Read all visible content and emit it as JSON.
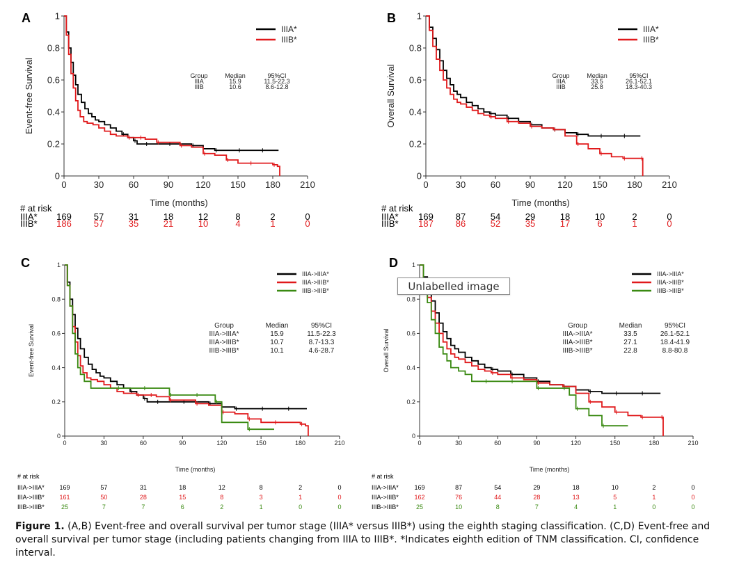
{
  "caption": {
    "label": "Figure 1.",
    "text": "(A,B) Event-free and overall survival per tumor stage (IIIA* versus IIIB*) using the eighth staging classification. (C,D) Event-free and overall survival per tumor stage (including patients changing from IIIA to IIIB*. *Indicates eighth edition of TNM classification. CI, confidence interval."
  },
  "tooltip": {
    "text": "Unlabelled image"
  },
  "colors": {
    "black": "#000000",
    "red": "#e0191b",
    "green": "#3a8a12"
  },
  "chart_data": [
    {
      "panel": "A",
      "type": "line",
      "ylabel": "Event-free Survival",
      "xlabel": "Time (months)",
      "xlim": [
        0,
        210
      ],
      "ylim": [
        0,
        1
      ],
      "xticks": [
        0,
        30,
        60,
        90,
        120,
        150,
        180,
        210
      ],
      "yticks": [
        "0",
        "0.2",
        "0.4",
        "0.6",
        "0.8",
        "1"
      ],
      "stats_header": [
        "Group",
        "Median",
        "95%CI"
      ],
      "stats": [
        [
          "IIIA",
          "15.9",
          "11.5-22.3"
        ],
        [
          "IIIB",
          "10.6",
          "8.6-12.8"
        ]
      ],
      "at_risk_label": "# at risk",
      "series": [
        {
          "name": "IIIA*",
          "color": "#000000",
          "at_risk": [
            "169",
            "57",
            "31",
            "18",
            "12",
            "8",
            "2",
            "0"
          ],
          "x": [
            0,
            2,
            4,
            6,
            8,
            10,
            12,
            15,
            18,
            21,
            24,
            27,
            30,
            35,
            40,
            45,
            50,
            55,
            60,
            63,
            70,
            80,
            90,
            100,
            110,
            120,
            130,
            140,
            150,
            160,
            170,
            185
          ],
          "y": [
            1,
            0.9,
            0.8,
            0.71,
            0.63,
            0.57,
            0.51,
            0.46,
            0.42,
            0.39,
            0.37,
            0.35,
            0.34,
            0.32,
            0.3,
            0.28,
            0.26,
            0.24,
            0.22,
            0.2,
            0.2,
            0.2,
            0.2,
            0.2,
            0.19,
            0.17,
            0.16,
            0.16,
            0.16,
            0.16,
            0.16,
            0.16
          ]
        },
        {
          "name": "IIIB*",
          "color": "#e0191b",
          "at_risk": [
            "186",
            "57",
            "35",
            "21",
            "10",
            "4",
            "1",
            "0"
          ],
          "x": [
            0,
            2,
            4,
            6,
            8,
            10,
            12,
            14,
            17,
            20,
            25,
            30,
            35,
            40,
            45,
            50,
            55,
            60,
            65,
            70,
            80,
            90,
            100,
            110,
            120,
            130,
            140,
            150,
            160,
            170,
            180,
            184,
            186
          ],
          "y": [
            1,
            0.88,
            0.76,
            0.64,
            0.55,
            0.47,
            0.41,
            0.37,
            0.34,
            0.33,
            0.32,
            0.3,
            0.28,
            0.26,
            0.25,
            0.25,
            0.24,
            0.24,
            0.24,
            0.23,
            0.21,
            0.21,
            0.19,
            0.18,
            0.14,
            0.13,
            0.1,
            0.08,
            0.08,
            0.08,
            0.07,
            0.06,
            0
          ]
        }
      ]
    },
    {
      "panel": "B",
      "type": "line",
      "ylabel": "Overall Survival",
      "xlabel": "Time (months)",
      "xlim": [
        0,
        210
      ],
      "ylim": [
        0,
        1
      ],
      "xticks": [
        0,
        30,
        60,
        90,
        120,
        150,
        180,
        210
      ],
      "yticks": [
        "0",
        "0.2",
        "0.4",
        "0.6",
        "0.8",
        "1"
      ],
      "stats_header": [
        "Group",
        "Median",
        "95%CI"
      ],
      "stats": [
        [
          "IIIA",
          "33.5",
          "26.1-52.1"
        ],
        [
          "IIIB",
          "25.8",
          "18.3-40.3"
        ]
      ],
      "at_risk_label": "# at risk",
      "series": [
        {
          "name": "IIIA*",
          "color": "#000000",
          "at_risk": [
            "169",
            "87",
            "54",
            "29",
            "18",
            "10",
            "2",
            "0"
          ],
          "x": [
            0,
            3,
            6,
            9,
            12,
            15,
            18,
            21,
            24,
            27,
            30,
            35,
            40,
            45,
            50,
            55,
            60,
            70,
            80,
            90,
            100,
            110,
            120,
            130,
            140,
            150,
            160,
            170,
            180,
            185
          ],
          "y": [
            1,
            0.93,
            0.86,
            0.79,
            0.72,
            0.66,
            0.61,
            0.57,
            0.53,
            0.51,
            0.49,
            0.46,
            0.44,
            0.42,
            0.4,
            0.39,
            0.38,
            0.36,
            0.34,
            0.32,
            0.3,
            0.29,
            0.27,
            0.26,
            0.25,
            0.25,
            0.25,
            0.25,
            0.25,
            0.25
          ]
        },
        {
          "name": "IIIB*",
          "color": "#e0191b",
          "at_risk": [
            "187",
            "86",
            "52",
            "35",
            "17",
            "6",
            "1",
            "0"
          ],
          "x": [
            0,
            3,
            6,
            9,
            12,
            15,
            18,
            21,
            24,
            27,
            30,
            35,
            40,
            45,
            50,
            55,
            60,
            70,
            80,
            90,
            100,
            110,
            120,
            130,
            140,
            150,
            160,
            170,
            180,
            185,
            187
          ],
          "y": [
            1,
            0.91,
            0.81,
            0.73,
            0.66,
            0.6,
            0.55,
            0.51,
            0.48,
            0.46,
            0.45,
            0.43,
            0.41,
            0.39,
            0.38,
            0.37,
            0.36,
            0.34,
            0.33,
            0.31,
            0.3,
            0.29,
            0.25,
            0.2,
            0.17,
            0.14,
            0.12,
            0.11,
            0.11,
            0.11,
            0
          ]
        }
      ]
    },
    {
      "panel": "C",
      "type": "line",
      "ylabel": "Event-free Survival",
      "xlabel": "Time (months)",
      "xlim": [
        0,
        210
      ],
      "ylim": [
        0,
        1
      ],
      "xticks": [
        0,
        30,
        60,
        90,
        120,
        150,
        180,
        210
      ],
      "yticks": [
        "0",
        "0.2",
        "0.4",
        "0.6",
        "0.8",
        "1"
      ],
      "stats_header": [
        "Group",
        "Median",
        "95%CI"
      ],
      "stats": [
        [
          "IIIA->IIIA*",
          "15.9",
          "11.5-22.3"
        ],
        [
          "IIIA->IIIB*",
          "10.7",
          "8.7-13.3"
        ],
        [
          "IIIB->IIIB*",
          "10.1",
          "4.6-28.7"
        ]
      ],
      "at_risk_label": "# at risk",
      "series": [
        {
          "name": "IIIA->IIIA*",
          "color": "#000000",
          "at_risk": [
            "169",
            "57",
            "31",
            "18",
            "12",
            "8",
            "2",
            "0"
          ],
          "x": [
            0,
            2,
            4,
            6,
            8,
            10,
            12,
            15,
            18,
            21,
            24,
            27,
            30,
            35,
            40,
            45,
            50,
            55,
            60,
            63,
            70,
            80,
            90,
            100,
            110,
            120,
            130,
            140,
            150,
            160,
            170,
            185
          ],
          "y": [
            1,
            0.9,
            0.8,
            0.71,
            0.63,
            0.57,
            0.51,
            0.46,
            0.42,
            0.39,
            0.37,
            0.35,
            0.34,
            0.32,
            0.3,
            0.28,
            0.26,
            0.24,
            0.22,
            0.2,
            0.2,
            0.2,
            0.2,
            0.2,
            0.19,
            0.17,
            0.16,
            0.16,
            0.16,
            0.16,
            0.16,
            0.16
          ]
        },
        {
          "name": "IIIA->IIIB*",
          "color": "#e0191b",
          "at_risk": [
            "161",
            "50",
            "28",
            "15",
            "8",
            "3",
            "1",
            "0"
          ],
          "x": [
            0,
            2,
            4,
            6,
            8,
            10,
            12,
            14,
            17,
            20,
            25,
            30,
            35,
            40,
            45,
            50,
            55,
            60,
            65,
            70,
            80,
            90,
            100,
            110,
            120,
            130,
            140,
            150,
            160,
            170,
            180,
            184,
            186
          ],
          "y": [
            1,
            0.88,
            0.76,
            0.64,
            0.55,
            0.47,
            0.41,
            0.37,
            0.34,
            0.33,
            0.32,
            0.3,
            0.28,
            0.26,
            0.25,
            0.25,
            0.24,
            0.24,
            0.24,
            0.23,
            0.21,
            0.21,
            0.19,
            0.18,
            0.14,
            0.13,
            0.1,
            0.08,
            0.08,
            0.08,
            0.07,
            0.06,
            0
          ]
        },
        {
          "name": "IIIB->IIIB*",
          "color": "#3a8a12",
          "at_risk": [
            "25",
            "7",
            "7",
            "6",
            "2",
            "1",
            "0",
            "0"
          ],
          "x": [
            0,
            2,
            4,
            6,
            8,
            10,
            12,
            15,
            20,
            25,
            30,
            40,
            50,
            60,
            70,
            80,
            90,
            100,
            110,
            115,
            120,
            140,
            160
          ],
          "y": [
            1,
            0.88,
            0.76,
            0.6,
            0.48,
            0.4,
            0.36,
            0.32,
            0.28,
            0.28,
            0.28,
            0.28,
            0.28,
            0.28,
            0.28,
            0.24,
            0.24,
            0.24,
            0.24,
            0.2,
            0.08,
            0.04,
            0.04
          ]
        }
      ]
    },
    {
      "panel": "D",
      "type": "line",
      "ylabel": "Overall Survival",
      "xlabel": "Time (months)",
      "xlim": [
        0,
        210
      ],
      "ylim": [
        0,
        1
      ],
      "xticks": [
        0,
        30,
        60,
        90,
        120,
        150,
        180,
        210
      ],
      "yticks": [
        "0",
        "0.2",
        "0.4",
        "0.6",
        "0.8",
        "1"
      ],
      "stats_header": [
        "Group",
        "Median",
        "95%CI"
      ],
      "stats": [
        [
          "IIIA->IIIA*",
          "33.5",
          "26.1-52.1"
        ],
        [
          "IIIA->IIIB*",
          "27.1",
          "18.4-41.9"
        ],
        [
          "IIIB->IIIB*",
          "22.8",
          "8.8-80.8"
        ]
      ],
      "at_risk_label": "# at risk",
      "series": [
        {
          "name": "IIIA->IIIA*",
          "color": "#000000",
          "at_risk": [
            "169",
            "87",
            "54",
            "29",
            "18",
            "10",
            "2",
            "0"
          ],
          "x": [
            0,
            3,
            6,
            9,
            12,
            15,
            18,
            21,
            24,
            27,
            30,
            35,
            40,
            45,
            50,
            55,
            60,
            70,
            80,
            90,
            100,
            110,
            120,
            130,
            140,
            150,
            160,
            170,
            180,
            185
          ],
          "y": [
            1,
            0.93,
            0.86,
            0.79,
            0.72,
            0.66,
            0.61,
            0.57,
            0.53,
            0.51,
            0.49,
            0.46,
            0.44,
            0.42,
            0.4,
            0.39,
            0.38,
            0.36,
            0.34,
            0.32,
            0.3,
            0.29,
            0.27,
            0.26,
            0.25,
            0.25,
            0.25,
            0.25,
            0.25,
            0.25
          ]
        },
        {
          "name": "IIIA->IIIB*",
          "color": "#e0191b",
          "at_risk": [
            "162",
            "76",
            "44",
            "28",
            "13",
            "5",
            "1",
            "0"
          ],
          "x": [
            0,
            3,
            6,
            9,
            12,
            15,
            18,
            21,
            24,
            27,
            30,
            35,
            40,
            45,
            50,
            55,
            60,
            70,
            80,
            90,
            100,
            110,
            120,
            130,
            140,
            150,
            160,
            170,
            180,
            185,
            187
          ],
          "y": [
            1,
            0.91,
            0.81,
            0.73,
            0.66,
            0.6,
            0.55,
            0.51,
            0.48,
            0.46,
            0.45,
            0.43,
            0.41,
            0.39,
            0.38,
            0.37,
            0.36,
            0.34,
            0.33,
            0.31,
            0.3,
            0.29,
            0.25,
            0.2,
            0.17,
            0.14,
            0.12,
            0.11,
            0.11,
            0.11,
            0
          ]
        },
        {
          "name": "IIIB->IIIB*",
          "color": "#3a8a12",
          "at_risk": [
            "25",
            "10",
            "8",
            "7",
            "4",
            "1",
            "0",
            "0"
          ],
          "x": [
            0,
            3,
            6,
            9,
            12,
            15,
            18,
            21,
            24,
            30,
            35,
            40,
            50,
            60,
            70,
            80,
            90,
            100,
            110,
            115,
            120,
            130,
            140,
            150,
            160
          ],
          "y": [
            1,
            0.88,
            0.78,
            0.68,
            0.6,
            0.52,
            0.48,
            0.44,
            0.4,
            0.38,
            0.36,
            0.32,
            0.32,
            0.32,
            0.32,
            0.32,
            0.28,
            0.28,
            0.28,
            0.24,
            0.16,
            0.12,
            0.06,
            0.06,
            0.06
          ]
        }
      ]
    }
  ]
}
